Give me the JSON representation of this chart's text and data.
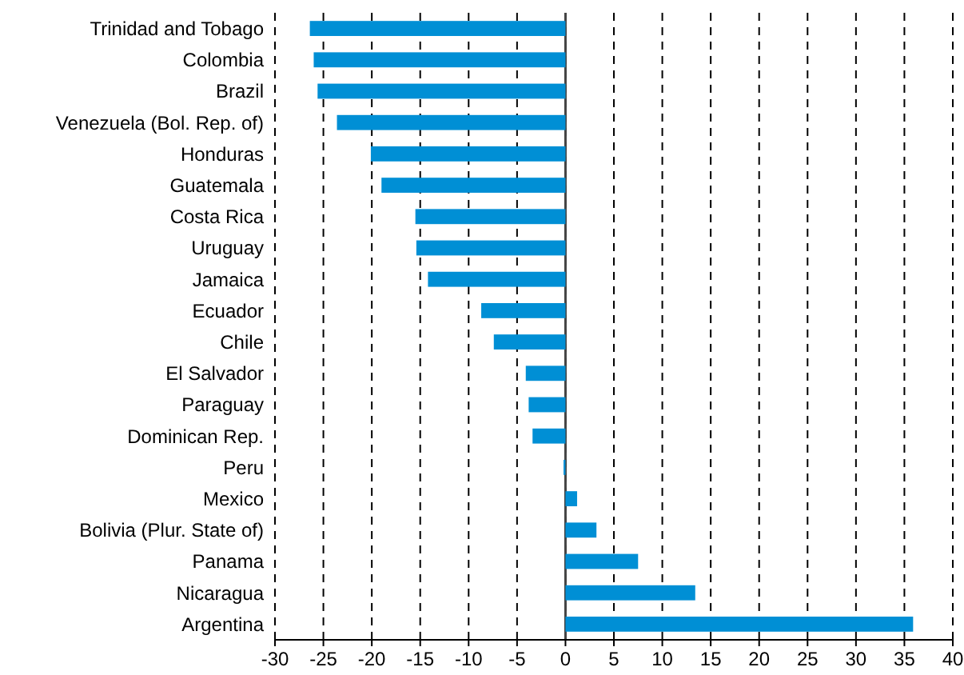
{
  "chart_data": {
    "type": "bar",
    "orientation": "horizontal",
    "categories": [
      "Trinidad and Tobago",
      "Colombia",
      "Brazil",
      "Venezuela (Bol. Rep. of)",
      "Honduras",
      "Guatemala",
      "Costa Rica",
      "Uruguay",
      "Jamaica",
      "Ecuador",
      "Chile",
      "El Salvador",
      "Paraguay",
      "Dominican Rep.",
      "Peru",
      "Mexico",
      "Bolivia (Plur. State of)",
      "Panama",
      "Nicaragua",
      "Argentina"
    ],
    "values": [
      -26.4,
      -26.0,
      -25.6,
      -23.6,
      -20.1,
      -19.0,
      -15.5,
      -15.4,
      -14.2,
      -8.7,
      -7.4,
      -4.1,
      -3.8,
      -3.4,
      -0.2,
      1.2,
      3.2,
      7.5,
      13.4,
      35.9
    ],
    "color": "#008fd5",
    "xlim": [
      -30,
      40
    ],
    "xticks": [
      -30,
      -25,
      -20,
      -15,
      -10,
      -5,
      0,
      5,
      10,
      15,
      20,
      25,
      30,
      35,
      40
    ],
    "grid": "x"
  }
}
